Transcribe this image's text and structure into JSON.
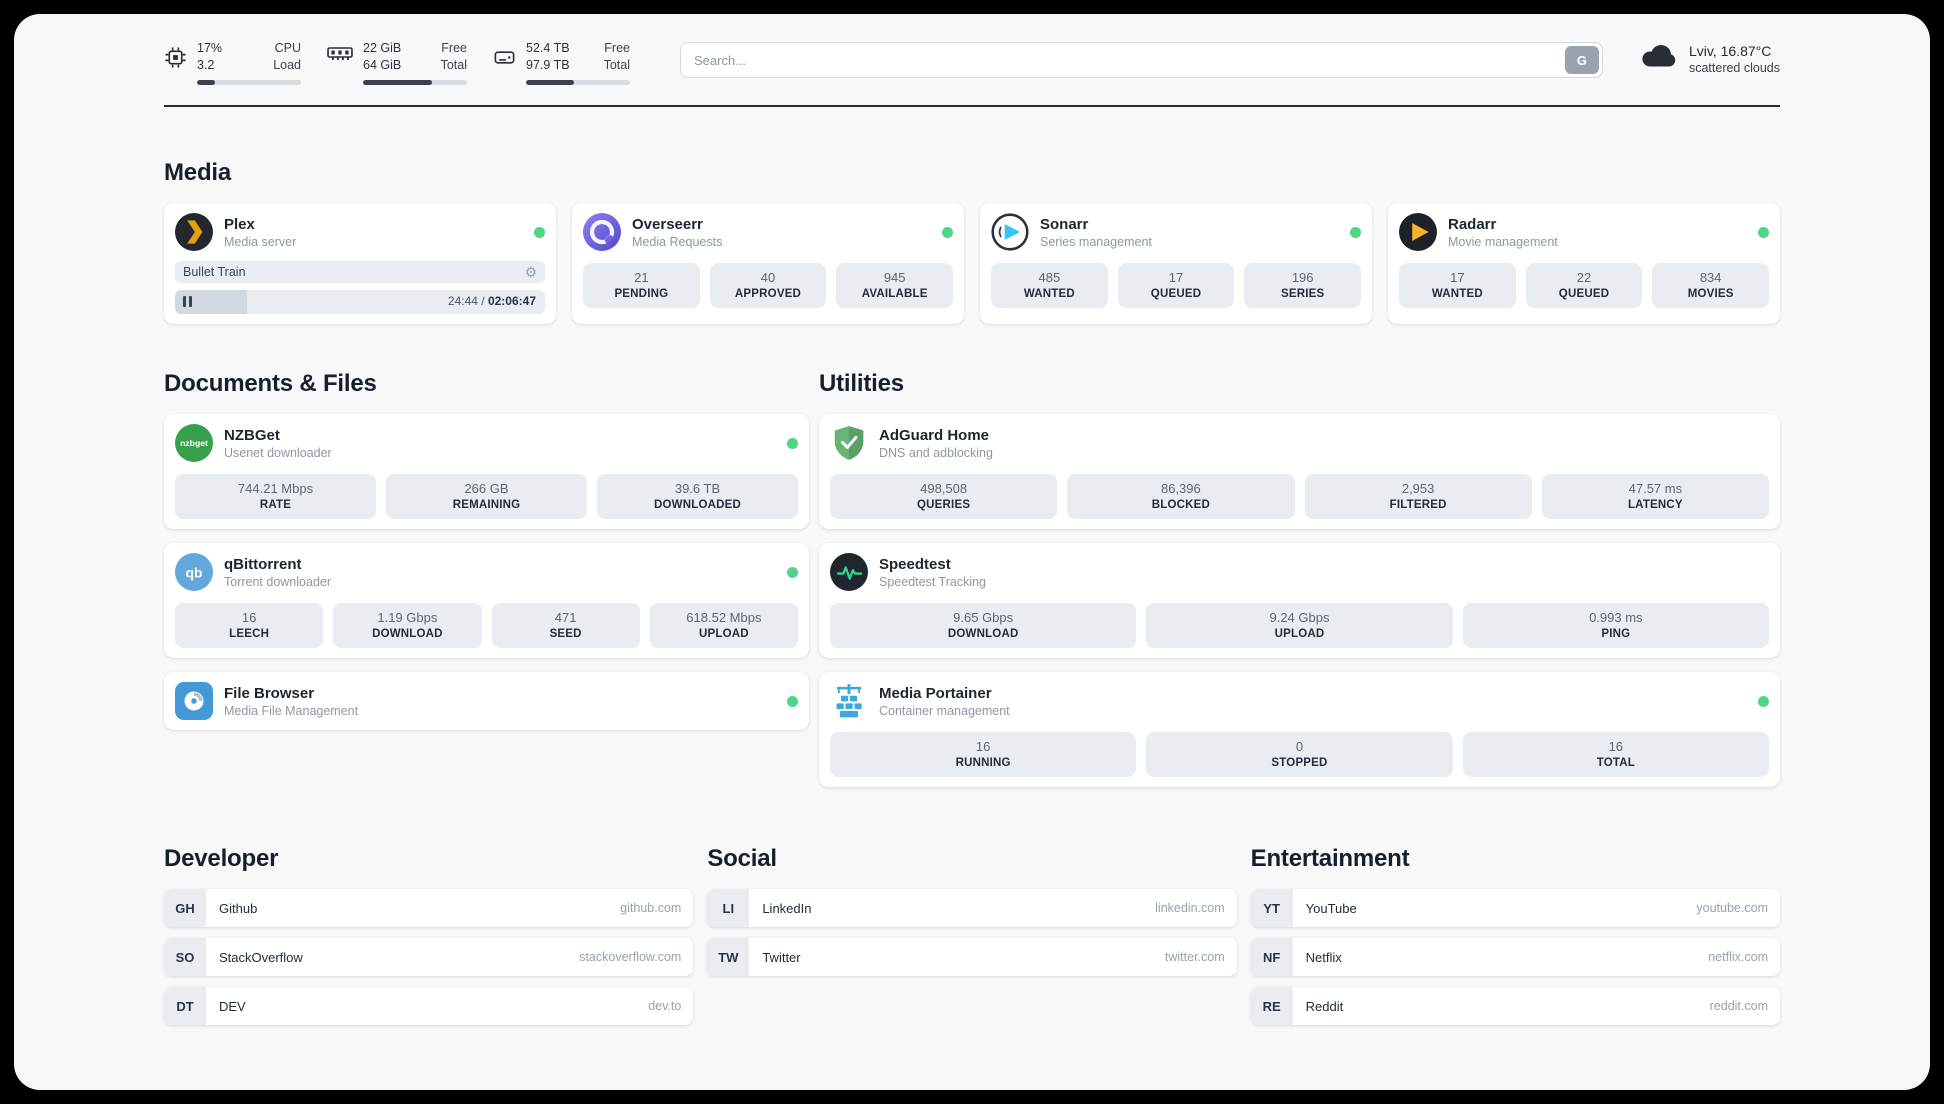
{
  "header": {
    "cpu": {
      "percent": "17%",
      "load": "3.2",
      "label_top": "CPU",
      "label_bottom": "Load",
      "bar_percent": 17
    },
    "ram": {
      "free": "22 GiB",
      "total": "64 GiB",
      "label_top": "Free",
      "label_bottom": "Total",
      "bar_percent": 66
    },
    "disk": {
      "free": "52.4 TB",
      "total": "97.9 TB",
      "label_top": "Free",
      "label_bottom": "Total",
      "bar_percent": 46
    },
    "search": {
      "placeholder": "Search...",
      "button_label": "G"
    },
    "weather": {
      "location": "Lviv, 16.87°C",
      "condition": "scattered clouds"
    }
  },
  "icons": {
    "gear": "⚙"
  },
  "colors": {
    "status_online": "#4fd58a",
    "progress_fill": "#39424e",
    "stat_box": "#e9edf2"
  },
  "sections": {
    "media": {
      "title": "Media",
      "cards": [
        {
          "name": "Plex",
          "subtitle": "Media server",
          "player": {
            "title": "Bullet Train",
            "time_current": "24:44",
            "time_separator": " / ",
            "time_total": "02:06:47",
            "progress_percent": 19.5
          }
        },
        {
          "name": "Overseerr",
          "subtitle": "Media Requests",
          "stats": [
            {
              "value": "21",
              "label": "PENDING"
            },
            {
              "value": "40",
              "label": "APPROVED"
            },
            {
              "value": "945",
              "label": "AVAILABLE"
            }
          ]
        },
        {
          "name": "Sonarr",
          "subtitle": "Series management",
          "stats": [
            {
              "value": "485",
              "label": "WANTED"
            },
            {
              "value": "17",
              "label": "QUEUED"
            },
            {
              "value": "196",
              "label": "SERIES"
            }
          ]
        },
        {
          "name": "Radarr",
          "subtitle": "Movie management",
          "stats": [
            {
              "value": "17",
              "label": "WANTED"
            },
            {
              "value": "22",
              "label": "QUEUED"
            },
            {
              "value": "834",
              "label": "MOVIES"
            }
          ]
        }
      ]
    },
    "documents": {
      "title": "Documents & Files",
      "cards": [
        {
          "name": "NZBGet",
          "subtitle": "Usenet downloader",
          "stats": [
            {
              "value": "744.21 Mbps",
              "label": "RATE"
            },
            {
              "value": "266 GB",
              "label": "REMAINING"
            },
            {
              "value": "39.6 TB",
              "label": "DOWNLOADED"
            }
          ]
        },
        {
          "name": "qBittorrent",
          "subtitle": "Torrent downloader",
          "stats": [
            {
              "value": "16",
              "label": "LEECH"
            },
            {
              "value": "1.19 Gbps",
              "label": "DOWNLOAD"
            },
            {
              "value": "471",
              "label": "SEED"
            },
            {
              "value": "618.52 Mbps",
              "label": "UPLOAD"
            }
          ]
        },
        {
          "name": "File Browser",
          "subtitle": "Media File Management",
          "stats": []
        }
      ]
    },
    "utilities": {
      "title": "Utilities",
      "cards": [
        {
          "name": "AdGuard Home",
          "subtitle": "DNS and adblocking",
          "stats": [
            {
              "value": "498,508",
              "label": "QUERIES"
            },
            {
              "value": "86,396",
              "label": "BLOCKED"
            },
            {
              "value": "2,953",
              "label": "FILTERED"
            },
            {
              "value": "47.57 ms",
              "label": "LATENCY"
            }
          ]
        },
        {
          "name": "Speedtest",
          "subtitle": "Speedtest Tracking",
          "stats": [
            {
              "value": "9.65 Gbps",
              "label": "DOWNLOAD"
            },
            {
              "value": "9.24 Gbps",
              "label": "UPLOAD"
            },
            {
              "value": "0.993 ms",
              "label": "PING"
            }
          ]
        },
        {
          "name": "Media Portainer",
          "subtitle": "Container management",
          "stats": [
            {
              "value": "16",
              "label": "RUNNING"
            },
            {
              "value": "0",
              "label": "STOPPED"
            },
            {
              "value": "16",
              "label": "TOTAL"
            }
          ]
        }
      ]
    }
  },
  "bookmarks": [
    {
      "title": "Developer",
      "items": [
        {
          "abbr": "GH",
          "name": "Github",
          "url": "github.com"
        },
        {
          "abbr": "SO",
          "name": "StackOverflow",
          "url": "stackoverflow.com"
        },
        {
          "abbr": "DT",
          "name": "DEV",
          "url": "dev.to"
        }
      ]
    },
    {
      "title": "Social",
      "items": [
        {
          "abbr": "LI",
          "name": "LinkedIn",
          "url": "linkedin.com"
        },
        {
          "abbr": "TW",
          "name": "Twitter",
          "url": "twitter.com"
        }
      ]
    },
    {
      "title": "Entertainment",
      "items": [
        {
          "abbr": "YT",
          "name": "YouTube",
          "url": "youtube.com"
        },
        {
          "abbr": "NF",
          "name": "Netflix",
          "url": "netflix.com"
        },
        {
          "abbr": "RE",
          "name": "Reddit",
          "url": "reddit.com"
        }
      ]
    }
  ]
}
